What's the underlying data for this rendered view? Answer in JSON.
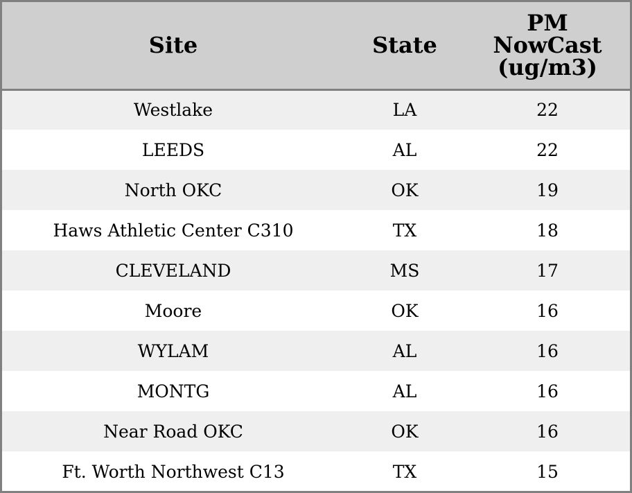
{
  "chart_data": {
    "type": "table",
    "columns": [
      "Site",
      "State",
      "PM",
      "NowCast",
      "(ug/m3)"
    ],
    "headers": {
      "site": "Site",
      "state": "State",
      "pm_line1": "PM",
      "pm_line2": "NowCast",
      "pm_line3": "(ug/m3)"
    },
    "rows": [
      {
        "site": "Westlake",
        "state": "LA",
        "value": "22"
      },
      {
        "site": "LEEDS",
        "state": "AL",
        "value": "22"
      },
      {
        "site": "North OKC",
        "state": "OK",
        "value": "19"
      },
      {
        "site": "Haws Athletic Center C310",
        "state": "TX",
        "value": "18"
      },
      {
        "site": "CLEVELAND",
        "state": "MS",
        "value": "17"
      },
      {
        "site": "Moore",
        "state": "OK",
        "value": "16"
      },
      {
        "site": "WYLAM",
        "state": "AL",
        "value": "16"
      },
      {
        "site": "MONTG",
        "state": "AL",
        "value": "16"
      },
      {
        "site": "Near Road OKC",
        "state": "OK",
        "value": "16"
      },
      {
        "site": "Ft. Worth Northwest C13",
        "state": "TX",
        "value": "15"
      }
    ]
  },
  "colors": {
    "header_bg": "#cfcfcf",
    "row_alt_bg": "#efefef",
    "row_bg": "#ffffff",
    "border": "#808080"
  }
}
